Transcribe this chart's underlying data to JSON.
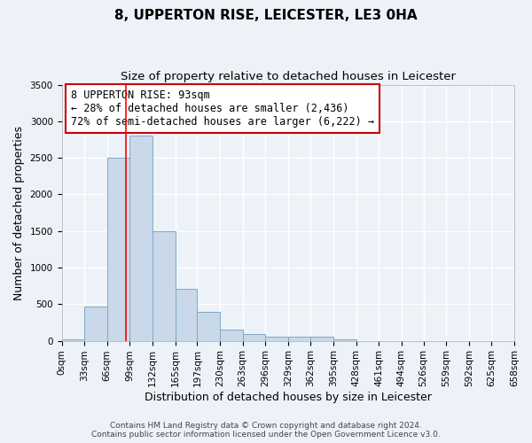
{
  "title": "8, UPPERTON RISE, LEICESTER, LE3 0HA",
  "subtitle": "Size of property relative to detached houses in Leicester",
  "xlabel": "Distribution of detached houses by size in Leicester",
  "ylabel": "Number of detached properties",
  "bar_color": "#c9d9ea",
  "bar_edge_color": "#7fa8c8",
  "bin_edges": [
    0,
    33,
    66,
    99,
    132,
    165,
    197,
    230,
    263,
    296,
    329,
    362,
    395,
    428,
    461,
    494,
    526,
    559,
    592,
    625,
    658
  ],
  "bar_heights": [
    20,
    470,
    2500,
    2800,
    1500,
    710,
    390,
    150,
    90,
    60,
    60,
    50,
    20,
    0,
    0,
    0,
    0,
    0,
    0,
    0
  ],
  "tick_labels": [
    "0sqm",
    "33sqm",
    "66sqm",
    "99sqm",
    "132sqm",
    "165sqm",
    "197sqm",
    "230sqm",
    "263sqm",
    "296sqm",
    "329sqm",
    "362sqm",
    "395sqm",
    "428sqm",
    "461sqm",
    "494sqm",
    "526sqm",
    "559sqm",
    "592sqm",
    "625sqm",
    "658sqm"
  ],
  "ylim": [
    0,
    3500
  ],
  "yticks": [
    0,
    500,
    1000,
    1500,
    2000,
    2500,
    3000,
    3500
  ],
  "property_line_x": 93,
  "annotation_line1": "8 UPPERTON RISE: 93sqm",
  "annotation_line2": "← 28% of detached houses are smaller (2,436)",
  "annotation_line3": "72% of semi-detached houses are larger (6,222) →",
  "annotation_box_color": "#ffffff",
  "annotation_box_edge_color": "#cc0000",
  "footer_line1": "Contains HM Land Registry data © Crown copyright and database right 2024.",
  "footer_line2": "Contains public sector information licensed under the Open Government Licence v3.0.",
  "background_color": "#edf2f9",
  "grid_color": "#ffffff",
  "plot_bg_color": "#edf2f9",
  "title_fontsize": 11,
  "subtitle_fontsize": 9.5,
  "axis_label_fontsize": 9,
  "tick_fontsize": 7.5,
  "annotation_fontsize": 8.5,
  "footer_fontsize": 6.5
}
